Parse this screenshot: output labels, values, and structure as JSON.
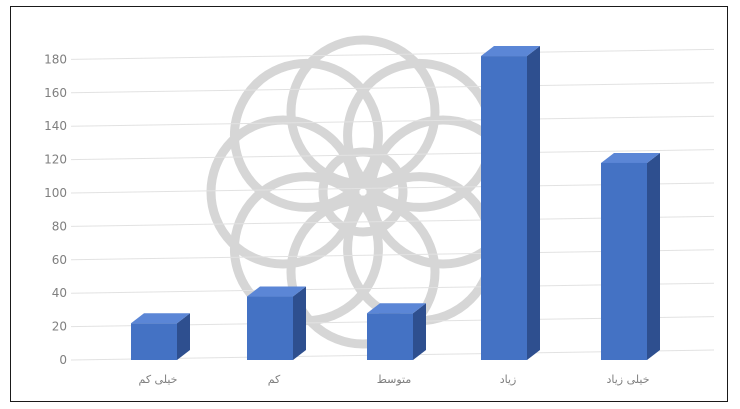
{
  "chart_data": {
    "type": "bar",
    "categories": [
      "خیلی کم",
      "کم",
      "متوسط",
      "زیاد",
      "خیلی زیاد"
    ],
    "values": [
      22,
      38,
      28,
      182,
      118
    ],
    "ylim": [
      0,
      180
    ],
    "yticks": [
      0,
      20,
      40,
      60,
      80,
      100,
      120,
      140,
      160,
      180
    ],
    "title": "",
    "xlabel": "",
    "ylabel": "",
    "grid": true,
    "legend": "none",
    "style": "3d",
    "colors": {
      "bar_front": "#4472c4",
      "bar_side": "#2e4f8f",
      "bar_top": "#5b86d6",
      "grid": "#e2e2e2",
      "axis_text": "#7f7f7f",
      "watermark": "#d6d6d6"
    }
  }
}
